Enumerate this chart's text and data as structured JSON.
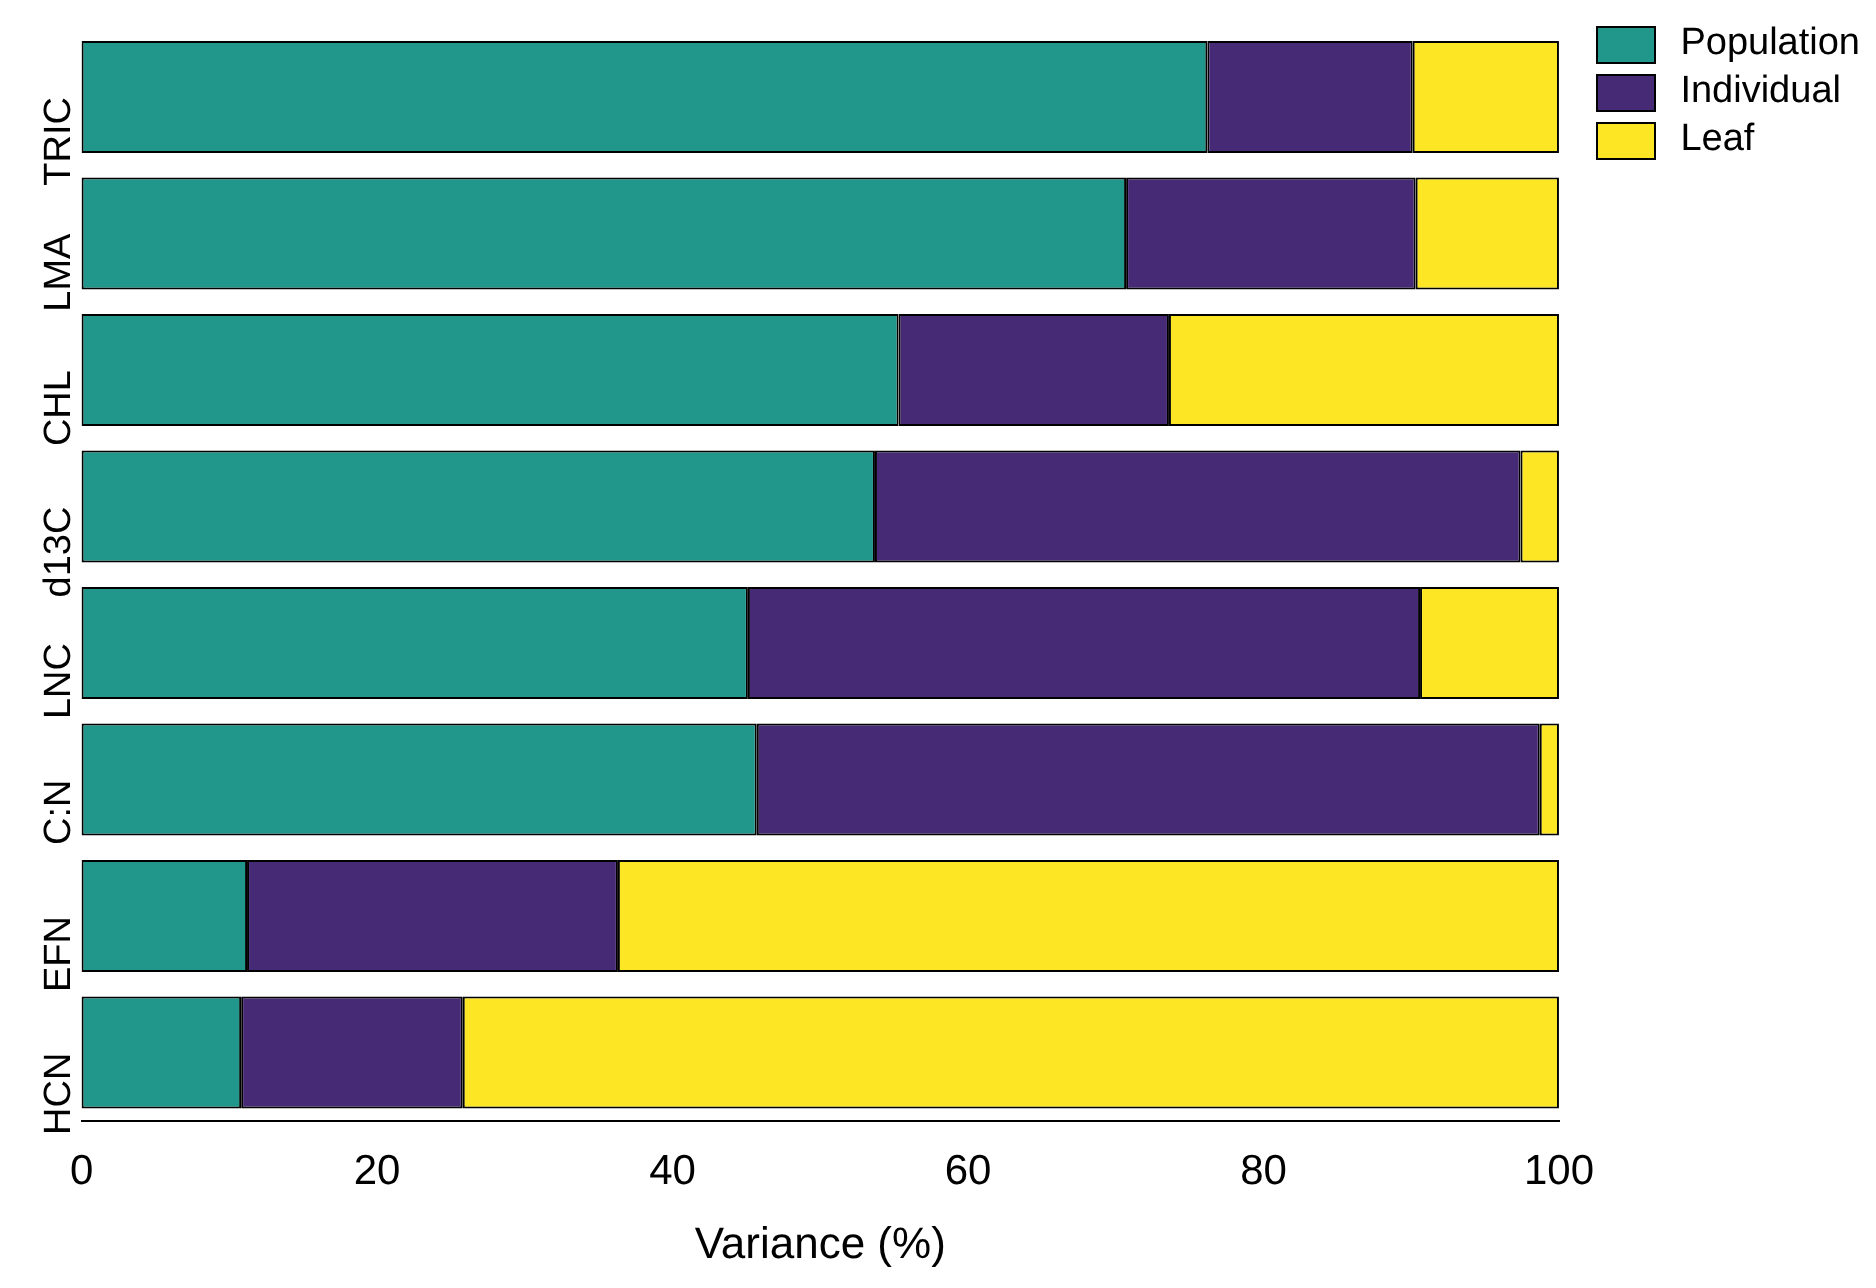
{
  "chart_data": {
    "type": "bar",
    "orientation": "horizontal",
    "stacked": true,
    "xlabel": "Variance (%)",
    "categories": [
      "TRIC",
      "LMA",
      "CHL",
      "d13C",
      "LNC",
      "C:N",
      "EFN",
      "HCN"
    ],
    "series": [
      {
        "name": "Population",
        "color": "#21968b",
        "values": [
          76.2,
          70.7,
          55.3,
          53.7,
          45.1,
          45.7,
          11.2,
          10.8
        ]
      },
      {
        "name": "Individual",
        "color": "#472a75",
        "values": [
          13.9,
          19.6,
          18.3,
          43.7,
          45.5,
          53.0,
          25.1,
          15.0
        ]
      },
      {
        "name": "Leaf",
        "color": "#fde725",
        "values": [
          9.9,
          9.7,
          26.4,
          2.6,
          9.4,
          1.3,
          63.7,
          74.2
        ]
      }
    ],
    "xlim": [
      0,
      100
    ],
    "xticks": [
      0,
      20,
      40,
      60,
      80,
      100
    ],
    "grid": false,
    "legend": "top right"
  }
}
